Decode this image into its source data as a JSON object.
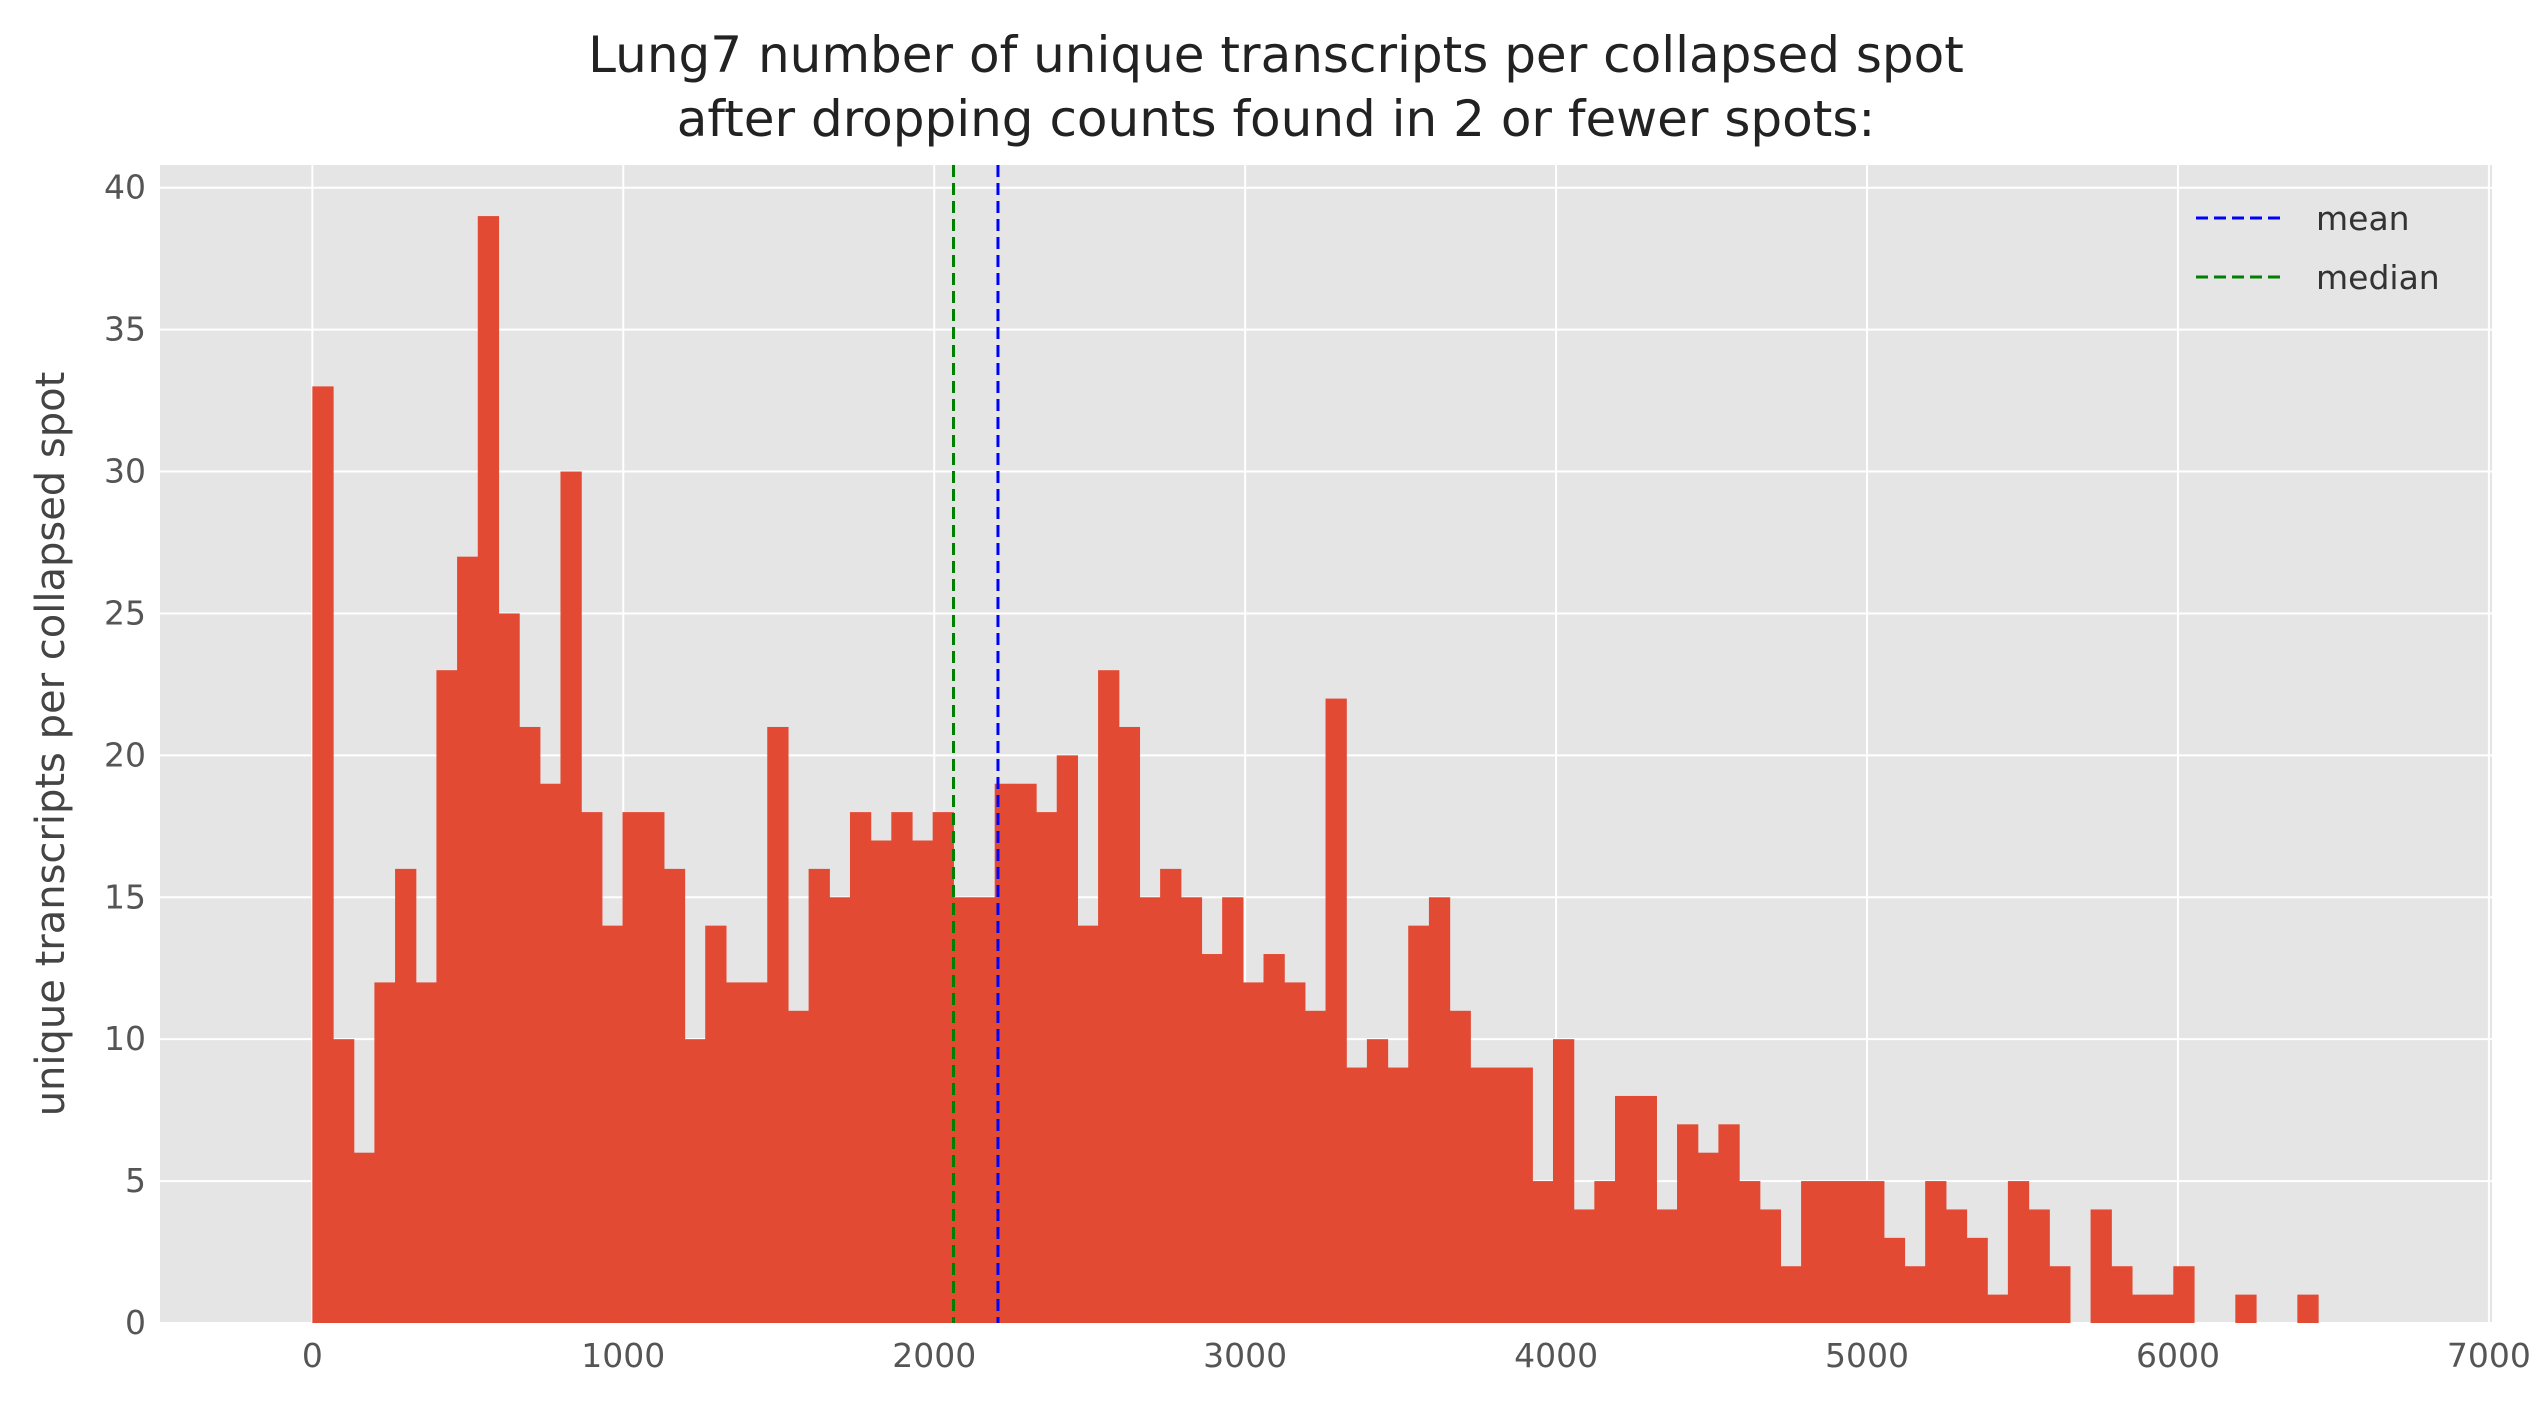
{
  "chart_data": {
    "type": "bar",
    "title_lines": [
      "Lung7 number of unique transcripts per collapsed spot",
      "after dropping counts found in 2 or fewer spots:"
    ],
    "xlabel": "",
    "ylabel": "unique transcripts per collapsed spot",
    "xlim": [
      -490,
      7010
    ],
    "ylim": [
      0,
      40.8
    ],
    "xticks": [
      0,
      1000,
      2000,
      3000,
      4000,
      5000,
      6000,
      7000
    ],
    "yticks": [
      0,
      5,
      10,
      15,
      20,
      25,
      30,
      35,
      40
    ],
    "grid": true,
    "background": "#e5e5e5",
    "grid_color": "#ffffff",
    "bar_color": "#e24a33",
    "bin_start": 0,
    "bin_width": 66.5,
    "values": [
      33,
      10,
      6,
      12,
      16,
      12,
      23,
      27,
      39,
      25,
      21,
      19,
      30,
      18,
      14,
      18,
      18,
      16,
      10,
      14,
      12,
      12,
      21,
      11,
      16,
      15,
      18,
      17,
      18,
      17,
      18,
      15,
      15,
      19,
      19,
      18,
      20,
      14,
      23,
      21,
      15,
      16,
      15,
      13,
      15,
      12,
      13,
      12,
      11,
      22,
      9,
      10,
      9,
      14,
      15,
      11,
      9,
      9,
      9,
      5,
      10,
      4,
      5,
      8,
      8,
      4,
      7,
      6,
      7,
      5,
      4,
      2,
      5,
      5,
      5,
      5,
      3,
      2,
      5,
      4,
      3,
      1,
      5,
      4,
      2,
      0,
      4,
      2,
      1,
      1,
      2,
      0,
      0,
      1,
      0,
      0,
      1
    ],
    "reference_lines": [
      {
        "name": "mean",
        "value": 2205,
        "color": "#0000ff",
        "style": "dashed"
      },
      {
        "name": "median",
        "value": 2062,
        "color": "#008000",
        "style": "dashed"
      }
    ],
    "legend": {
      "placement": "top-right",
      "entries": [
        {
          "label": "mean",
          "color": "#0000ff"
        },
        {
          "label": "median",
          "color": "#008000"
        }
      ]
    }
  }
}
